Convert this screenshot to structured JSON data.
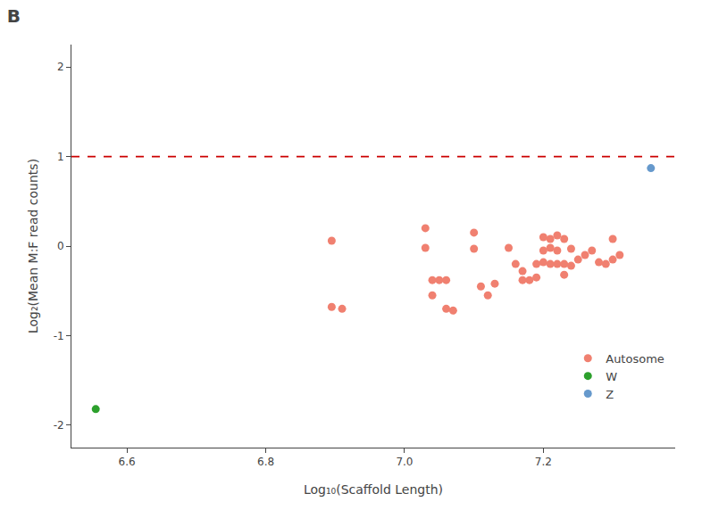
{
  "chart_data": {
    "type": "scatter",
    "title": "B",
    "xlabel": "Log₁₀(Scaffold Length)",
    "ylabel": "Log₂(Mean M:F read counts)",
    "xlim": [
      6.52,
      7.39
    ],
    "ylim": [
      -2.25,
      2.25
    ],
    "xticks": [
      6.6,
      6.8,
      {
        "value": 7.0,
        "label": "7.0"
      },
      7.2
    ],
    "yticks": [
      -2,
      -1,
      0,
      1,
      2
    ],
    "grid": false,
    "legend": "lower right",
    "marker": "circle",
    "hlines": [
      {
        "value": 1.0,
        "color": "#cc0000",
        "line_style": "dashed"
      }
    ],
    "series": [
      {
        "name": "Autosome",
        "color": "#f08070",
        "x": [
          6.895,
          6.895,
          6.91,
          7.03,
          7.03,
          7.04,
          7.04,
          7.05,
          7.06,
          7.06,
          7.07,
          7.1,
          7.1,
          7.11,
          7.12,
          7.13,
          7.15,
          7.16,
          7.17,
          7.17,
          7.18,
          7.19,
          7.19,
          7.2,
          7.2,
          7.2,
          7.21,
          7.21,
          7.21,
          7.22,
          7.22,
          7.22,
          7.23,
          7.23,
          7.23,
          7.24,
          7.24,
          7.25,
          7.26,
          7.27,
          7.28,
          7.29,
          7.3,
          7.3,
          7.31
        ],
        "values": [
          0.06,
          -0.68,
          -0.7,
          0.2,
          -0.02,
          -0.38,
          -0.55,
          -0.38,
          -0.7,
          -0.38,
          -0.72,
          0.15,
          -0.03,
          -0.45,
          -0.55,
          -0.42,
          -0.02,
          -0.2,
          -0.28,
          -0.38,
          -0.38,
          -0.2,
          -0.35,
          0.1,
          -0.05,
          -0.18,
          0.08,
          -0.02,
          -0.2,
          0.12,
          -0.05,
          -0.2,
          0.08,
          -0.2,
          -0.32,
          -0.03,
          -0.22,
          -0.15,
          -0.1,
          -0.05,
          -0.18,
          -0.2,
          0.08,
          -0.15,
          -0.1
        ]
      },
      {
        "name": "W",
        "color": "#2ca02c",
        "x": [
          6.555
        ],
        "values": [
          -1.82
        ]
      },
      {
        "name": "Z",
        "color": "#6699cc",
        "x": [
          7.355
        ],
        "values": [
          0.87
        ]
      }
    ]
  }
}
